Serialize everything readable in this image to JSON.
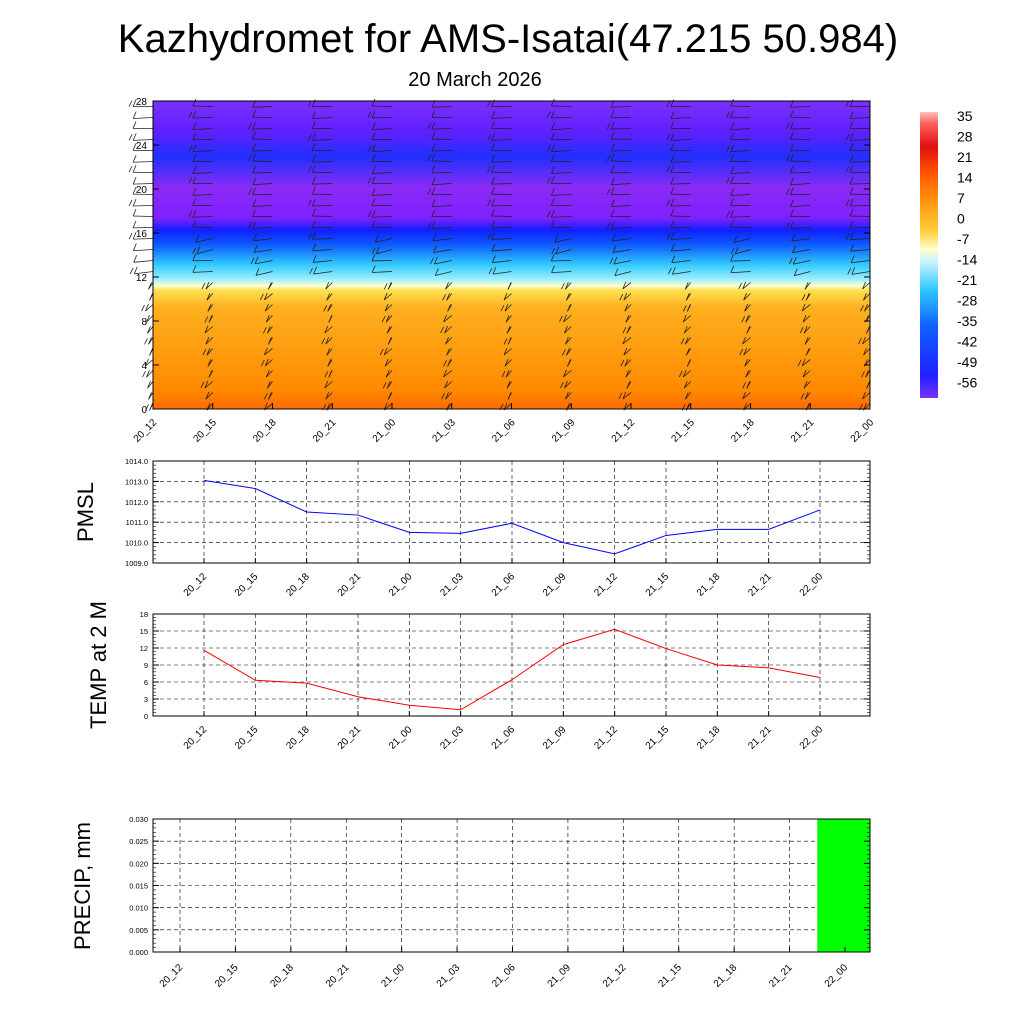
{
  "title": "Kazhydromet for AMS-Isatai(47.215 50.984)",
  "subtitle": "20 March 2026",
  "colors": {
    "pmsl_line": "#0000ff",
    "temp_line": "#ff0000",
    "precip_bar": "#00ff00"
  },
  "chart_data": [
    {
      "type": "heatmap",
      "name": "time-height cross section with wind barbs",
      "x": [
        "20_12",
        "20_15",
        "20_18",
        "20_21",
        "21_00",
        "21_03",
        "21_06",
        "21_09",
        "21_12",
        "21_15",
        "21_18",
        "21_21",
        "22_00"
      ],
      "y_ticks": [
        0,
        4,
        8,
        12,
        16,
        20,
        24,
        28
      ],
      "ylim": [
        0,
        28
      ],
      "colorbar_labels": [
        "35",
        "28",
        "21",
        "14",
        "7",
        "0",
        "-7",
        "-14",
        "-21",
        "-28",
        "-35",
        "-42",
        "-49",
        "-56"
      ],
      "legend_position": "right"
    },
    {
      "type": "line",
      "ylabel": "PMSL",
      "x": [
        "20_12",
        "20_15",
        "20_18",
        "20_21",
        "21_00",
        "21_03",
        "21_06",
        "21_09",
        "21_12",
        "21_15",
        "21_18",
        "21_21",
        "22_00"
      ],
      "values": [
        1013.05,
        1012.65,
        1011.5,
        1011.35,
        1010.5,
        1010.45,
        1010.95,
        1010.0,
        1009.45,
        1010.35,
        1010.65,
        1010.65,
        1011.6
      ],
      "ylim": [
        1009.0,
        1014.0
      ],
      "y_ticks": [
        "1009.0",
        "1010.0",
        "1011.0",
        "1012.0",
        "1013.0",
        "1014.0"
      ],
      "grid": true
    },
    {
      "type": "line",
      "ylabel": "TEMP at 2 M",
      "x": [
        "20_12",
        "20_15",
        "20_18",
        "20_21",
        "21_00",
        "21_03",
        "21_06",
        "21_09",
        "21_12",
        "21_15",
        "21_18",
        "21_21",
        "22_00"
      ],
      "values": [
        11.6,
        6.3,
        5.8,
        3.4,
        1.9,
        1.1,
        6.4,
        12.6,
        15.3,
        11.9,
        9.0,
        8.5,
        6.8
      ],
      "ylim": [
        0,
        18
      ],
      "y_ticks": [
        "0",
        "3",
        "6",
        "9",
        "12",
        "15",
        "18"
      ],
      "grid": true
    },
    {
      "type": "bar",
      "ylabel": "PRECIP, mm",
      "categories": [
        "20_12",
        "20_15",
        "20_18",
        "20_21",
        "21_00",
        "21_03",
        "21_06",
        "21_09",
        "21_12",
        "21_15",
        "21_18",
        "21_21",
        "22_00"
      ],
      "values": [
        0,
        0,
        0,
        0,
        0,
        0,
        0,
        0,
        0,
        0,
        0,
        0,
        0.03
      ],
      "ylim": [
        0,
        0.03
      ],
      "y_ticks": [
        "0.000",
        "0.005",
        "0.010",
        "0.015",
        "0.020",
        "0.025",
        "0.030"
      ],
      "grid": true
    }
  ]
}
